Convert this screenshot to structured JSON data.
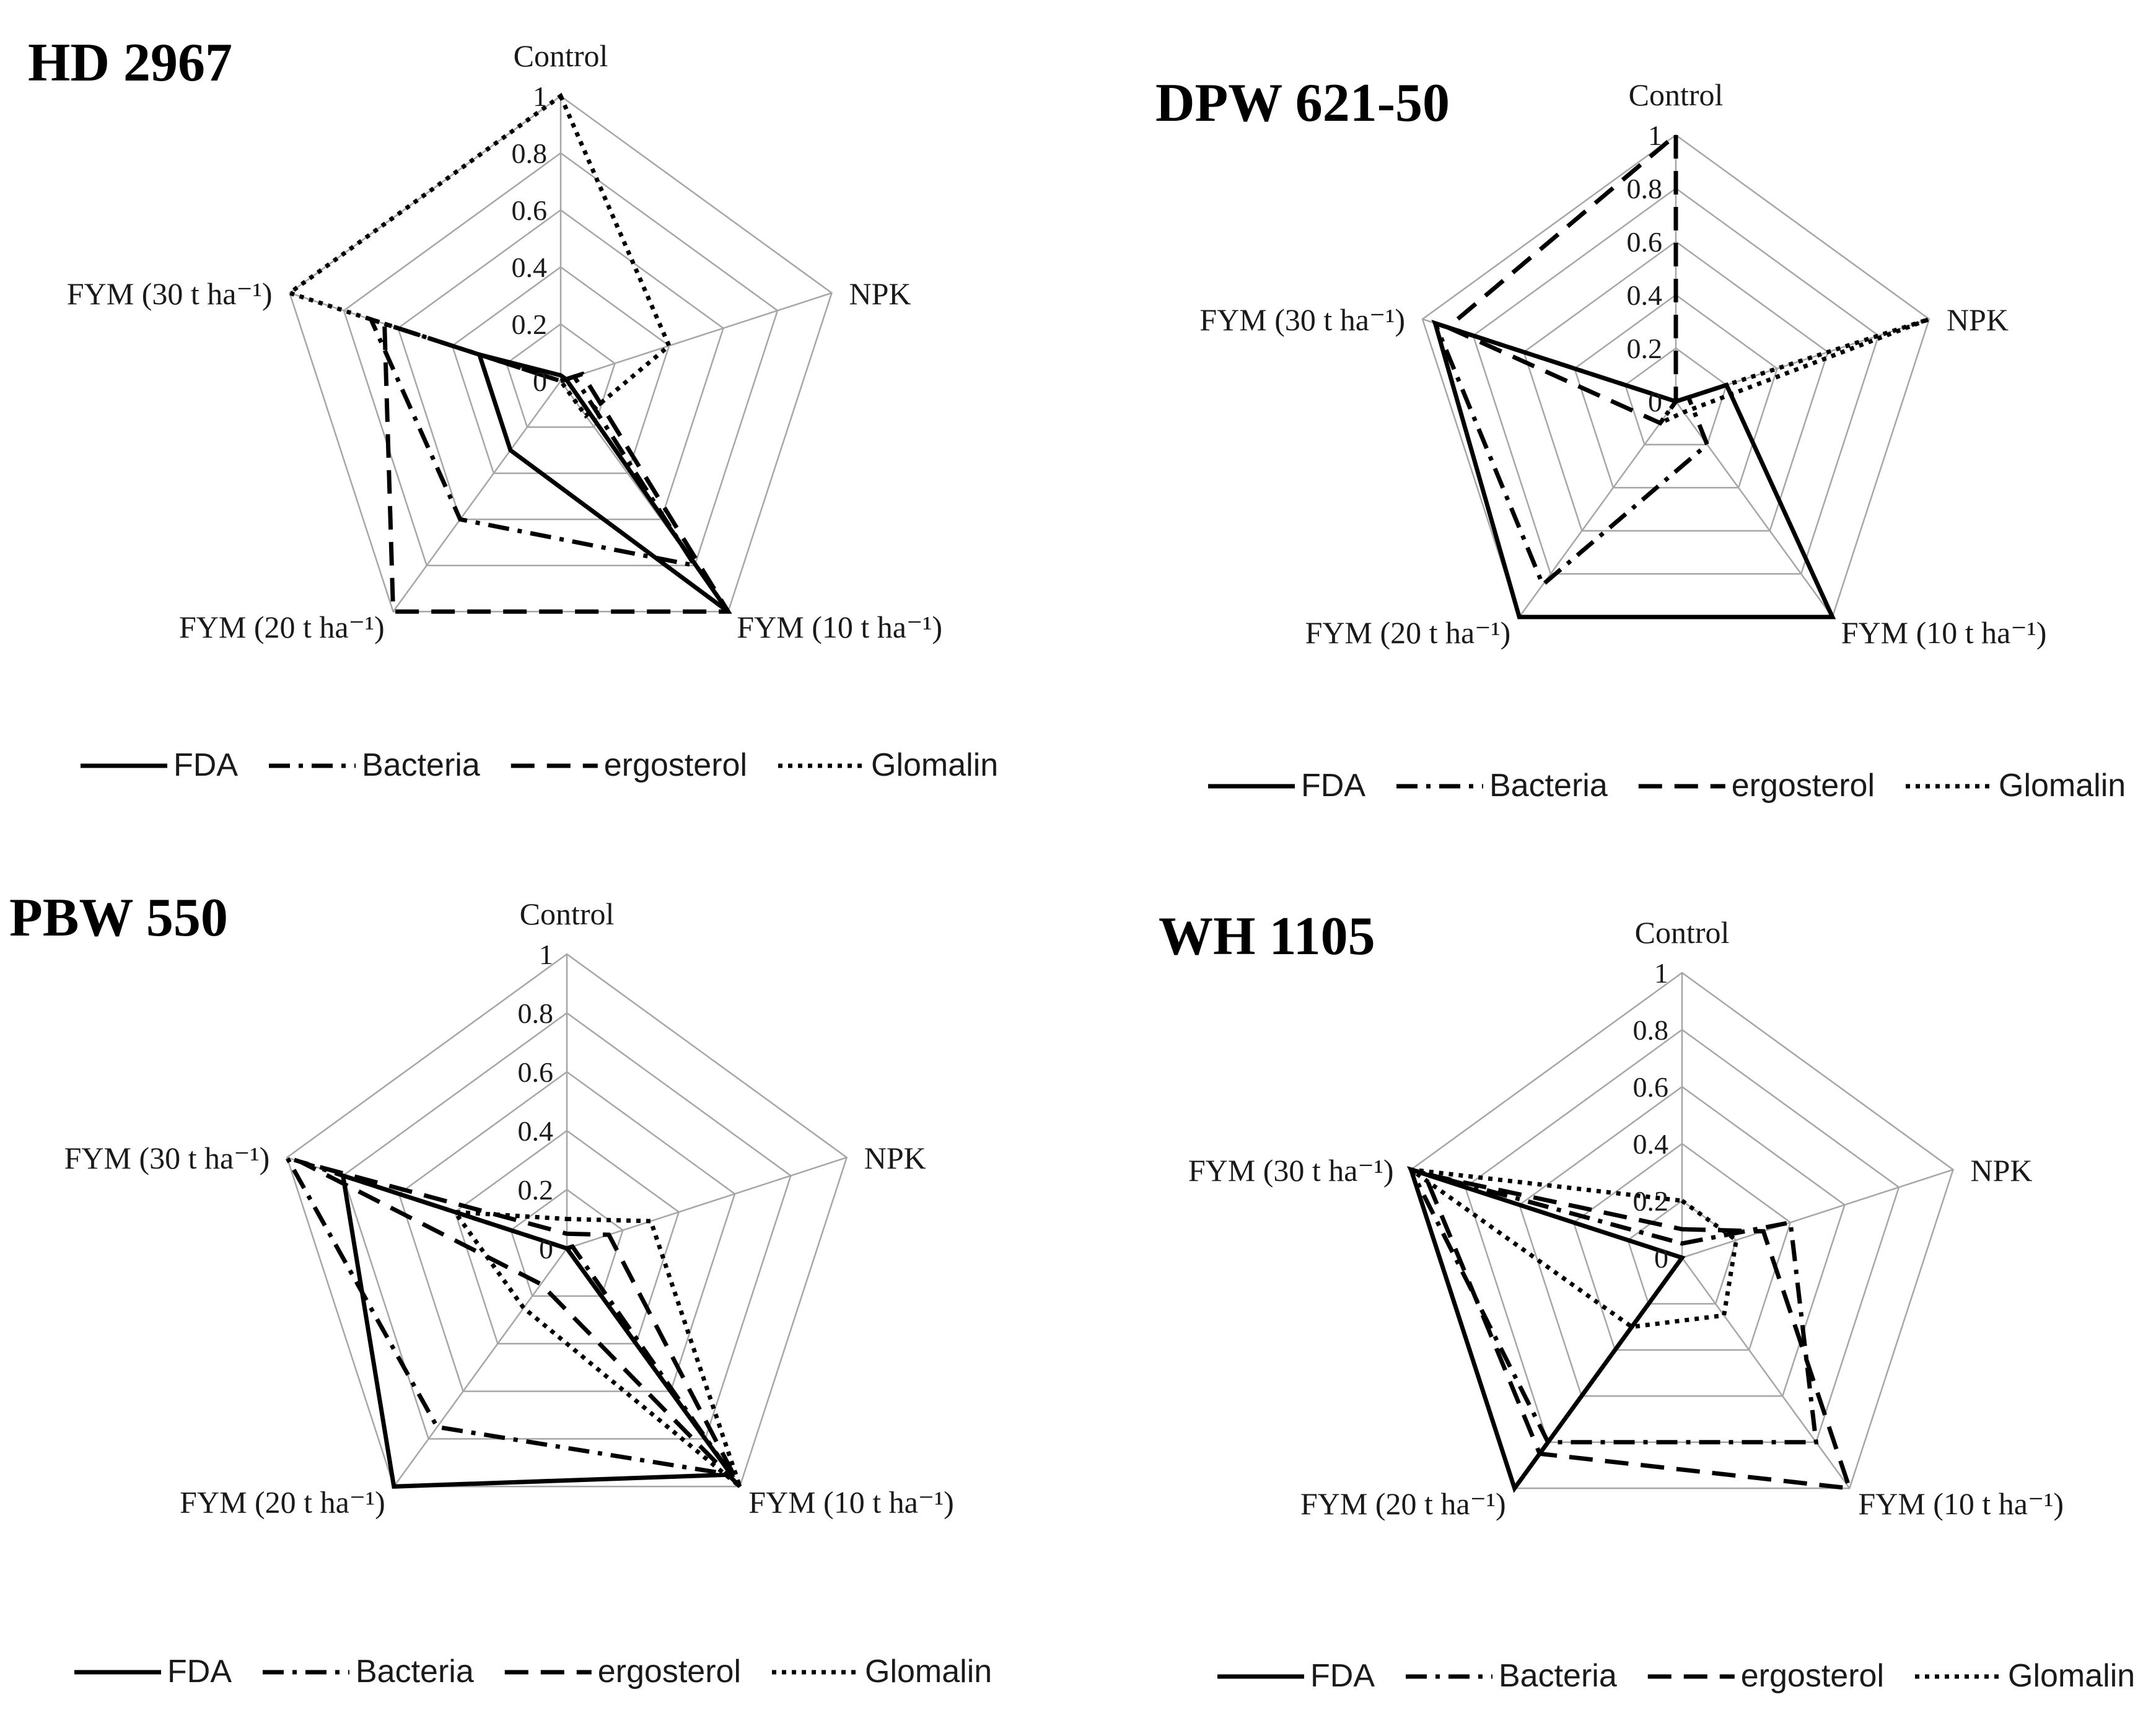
{
  "chart_data": [
    {
      "type": "radar",
      "title": "HD 2967",
      "axes": [
        "Control",
        "NPK",
        "FYM (10 t ha⁻¹)",
        "FYM (20 t ha⁻¹)",
        "FYM (30 t ha⁻¹)"
      ],
      "ticks": [
        "0",
        "0.2",
        "0.4",
        "0.6",
        "0.8",
        "1"
      ],
      "rlim": [
        0,
        1
      ],
      "legend": [
        "FDA",
        "Bacteria",
        "ergosterol",
        "Glomalin"
      ],
      "series": [
        {
          "name": "FDA",
          "style": "solid",
          "values": [
            0.02,
            0.02,
            1.0,
            0.3,
            0.3
          ]
        },
        {
          "name": "Bacteria",
          "style": "dashdot",
          "values": [
            0.0,
            0.05,
            0.8,
            0.6,
            0.7
          ]
        },
        {
          "name": "ergosterol",
          "style": "dashed",
          "values": [
            0.0,
            0.08,
            1.0,
            1.0,
            0.65
          ]
        },
        {
          "name": "Glomalin",
          "style": "dotted",
          "values": [
            1.0,
            0.4,
            0.15,
            0.0,
            1.0
          ]
        }
      ]
    },
    {
      "type": "radar",
      "title": "DPW 621-50",
      "axes": [
        "Control",
        "NPK",
        "FYM (10 t ha⁻¹)",
        "FYM (20 t ha⁻¹)",
        "FYM (30 t ha⁻¹)"
      ],
      "ticks": [
        "0",
        "0.2",
        "0.4",
        "0.6",
        "0.8",
        "1"
      ],
      "rlim": [
        0,
        1
      ],
      "legend": [
        "FDA",
        "Bacteria",
        "ergosterol",
        "Glomalin"
      ],
      "series": [
        {
          "name": "FDA",
          "style": "solid",
          "values": [
            0.0,
            0.2,
            1.0,
            1.0,
            0.95
          ]
        },
        {
          "name": "Bacteria",
          "style": "dashdot",
          "values": [
            0.0,
            0.05,
            0.2,
            0.85,
            0.95
          ]
        },
        {
          "name": "ergosterol",
          "style": "dashed",
          "values": [
            1.0,
            0.0,
            0.0,
            0.1,
            0.9
          ]
        },
        {
          "name": "Glomalin",
          "style": "dotted",
          "values": [
            0.0,
            1.0,
            0.05,
            0.1,
            0.0
          ]
        }
      ]
    },
    {
      "type": "radar",
      "title": "PBW 550",
      "axes": [
        "Control",
        "NPK",
        "FYM (10 t ha⁻¹)",
        "FYM (20 t ha⁻¹)",
        "FYM (30 t ha⁻¹)"
      ],
      "ticks": [
        "0",
        "0.2",
        "0.4",
        "0.6",
        "0.8",
        "1"
      ],
      "rlim": [
        0,
        1
      ],
      "legend": [
        "FDA",
        "Bacteria",
        "ergosterol",
        "Glomalin"
      ],
      "series": [
        {
          "name": "FDA",
          "style": "solid",
          "values": [
            0.0,
            0.0,
            0.95,
            1.0,
            0.8
          ]
        },
        {
          "name": "Bacteria",
          "style": "dashdot",
          "values": [
            0.0,
            0.02,
            0.95,
            0.75,
            1.0
          ]
        },
        {
          "name": "ergosterol",
          "style": "dashed",
          "values": [
            0.05,
            0.15,
            1.0,
            0.15,
            0.95
          ]
        },
        {
          "name": "Glomalin",
          "style": "dotted",
          "values": [
            0.1,
            0.3,
            1.0,
            0.25,
            0.4
          ]
        }
      ]
    },
    {
      "type": "radar",
      "title": "WH 1105",
      "axes": [
        "Control",
        "NPK",
        "FYM (10 t ha⁻¹)",
        "FYM (20 t ha⁻¹)",
        "FYM (30 t ha⁻¹)"
      ],
      "ticks": [
        "0",
        "0.2",
        "0.4",
        "0.6",
        "0.8",
        "1"
      ],
      "rlim": [
        0,
        1
      ],
      "legend": [
        "FDA",
        "Bacteria",
        "ergosterol",
        "Glomalin"
      ],
      "series": [
        {
          "name": "FDA",
          "style": "solid",
          "values": [
            0.0,
            0.0,
            0.0,
            1.0,
            1.0
          ]
        },
        {
          "name": "Bacteria",
          "style": "dashdot",
          "values": [
            0.05,
            0.4,
            0.8,
            0.8,
            1.0
          ]
        },
        {
          "name": "ergosterol",
          "style": "dashed",
          "values": [
            0.1,
            0.3,
            1.0,
            0.85,
            0.95
          ]
        },
        {
          "name": "Glomalin",
          "style": "dotted",
          "values": [
            0.2,
            0.2,
            0.25,
            0.3,
            1.0
          ]
        }
      ]
    }
  ]
}
